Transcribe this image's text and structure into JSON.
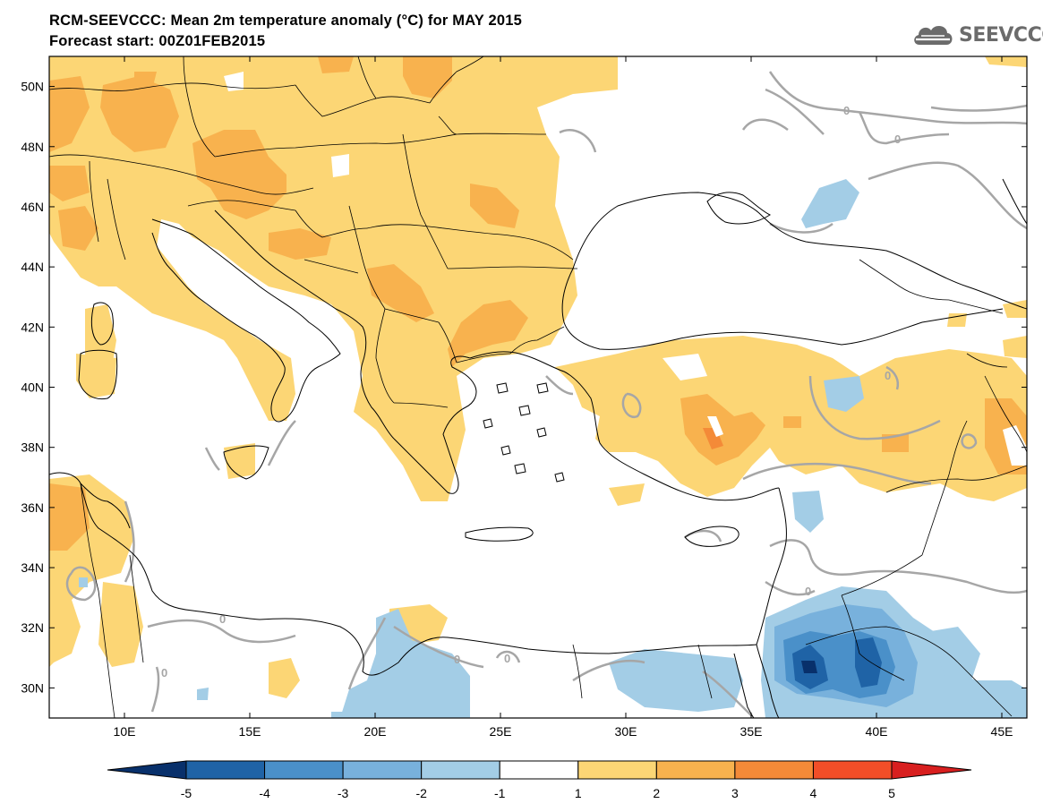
{
  "header": {
    "title": "RCM-SEEVCCC: Mean 2m temperature anomaly (°C) for MAY 2015",
    "subtitle": "Forecast start: 00Z01FEB2015",
    "logo_text": "SEEVCCC"
  },
  "map": {
    "lon_range": [
      7,
      46
    ],
    "lat_range": [
      29,
      51
    ],
    "lat_labels": [
      "50N",
      "48N",
      "46N",
      "44N",
      "42N",
      "40N",
      "38N",
      "36N",
      "34N",
      "32N",
      "30N"
    ],
    "lat_values": [
      50,
      48,
      46,
      44,
      42,
      40,
      38,
      36,
      34,
      32,
      30
    ],
    "lon_labels": [
      "10E",
      "15E",
      "20E",
      "25E",
      "30E",
      "35E",
      "40E",
      "45E"
    ],
    "lon_values": [
      10,
      15,
      20,
      25,
      30,
      35,
      40,
      45
    ],
    "contour_label": "0"
  },
  "colorbar": {
    "labels": [
      "-5",
      "-4",
      "-3",
      "-2",
      "-1",
      "1",
      "2",
      "3",
      "4",
      "5"
    ],
    "colors": [
      "#08306b",
      "#1f63a6",
      "#4a90c9",
      "#78b1dc",
      "#a3cde6",
      "#ffffff",
      "#fcd675",
      "#f8b24e",
      "#f48a38",
      "#f24e28",
      "#d81f1f"
    ]
  }
}
